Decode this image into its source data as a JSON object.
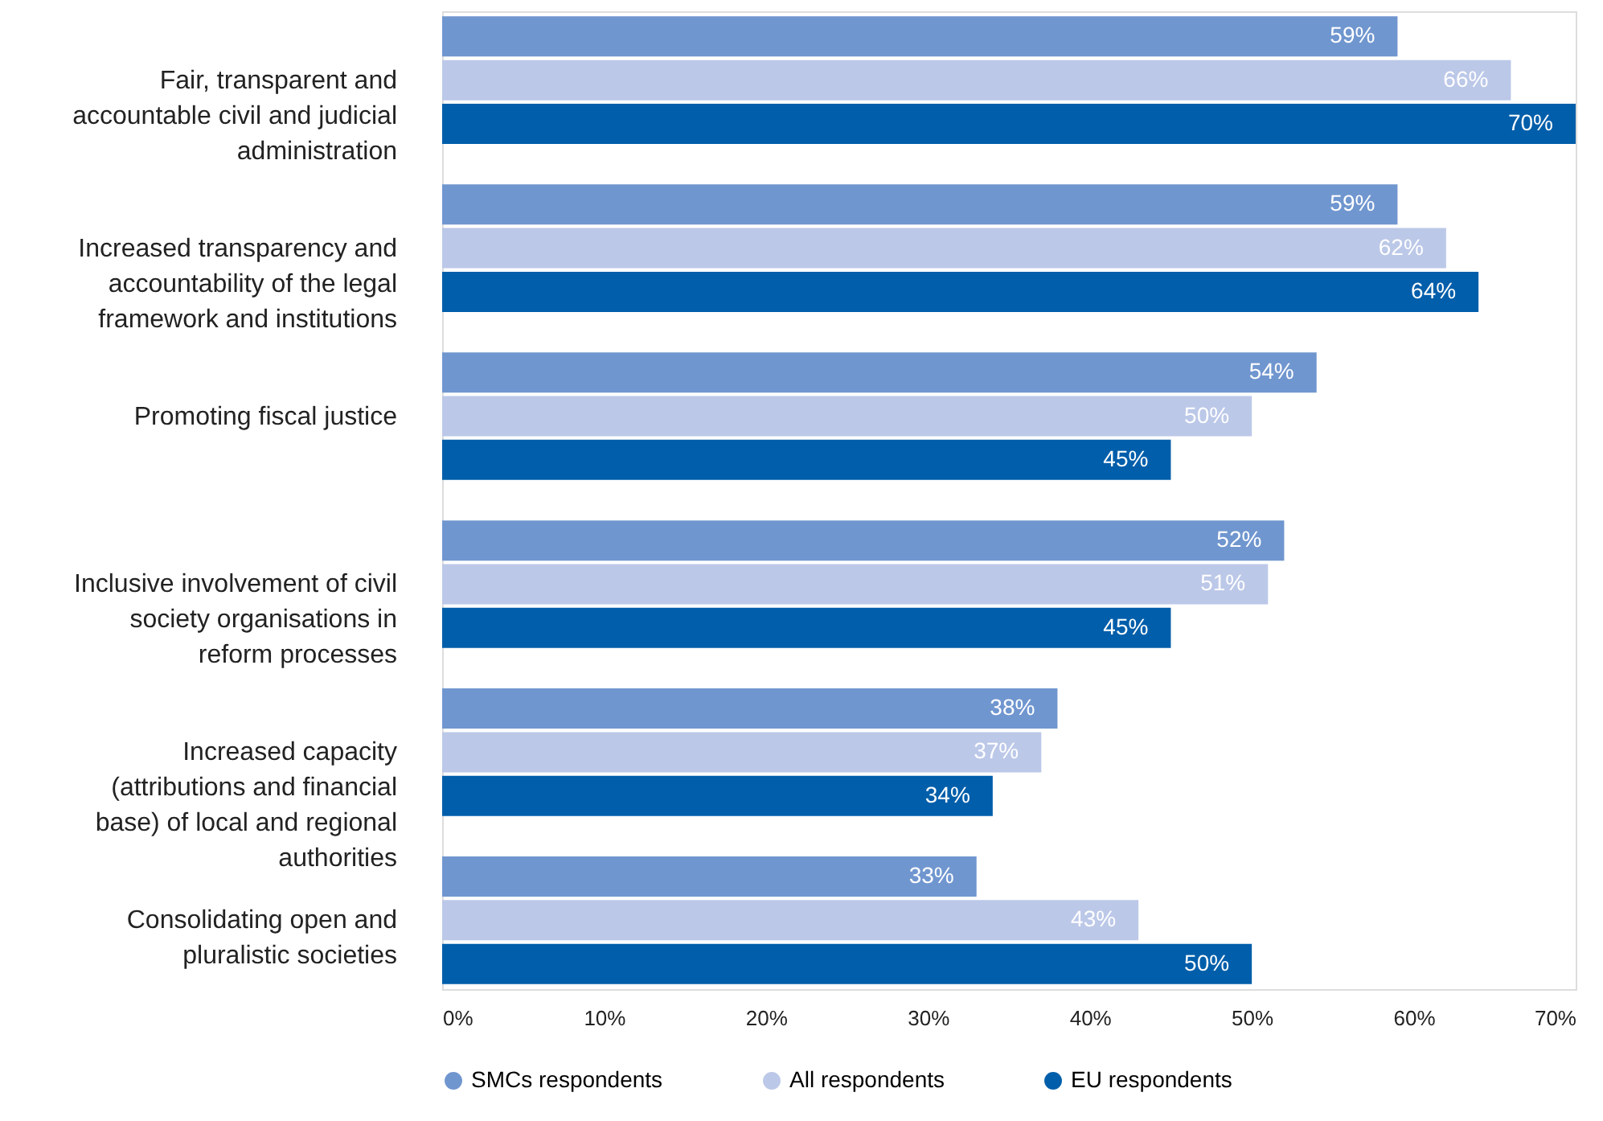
{
  "chart_data": {
    "type": "bar",
    "orientation": "horizontal",
    "categories": [
      "Fair, transparent and accountable civil and judicial administration",
      "Increased transparency and accountability of the legal framework and institutions",
      "Promoting fiscal justice",
      "Inclusive involvement of civil society organisations in reform processes",
      "Increased capacity (attributions and financial base) of local and regional authorities",
      "Consolidating open and pluralistic societies"
    ],
    "series": [
      {
        "name": "SMCs respondents",
        "color": "#7096cf",
        "values": [
          59,
          59,
          54,
          52,
          38,
          33
        ],
        "value_labels": [
          "59%",
          "59%",
          "54%",
          "52%",
          "38%",
          "33%"
        ]
      },
      {
        "name": "All respondents",
        "color": "#bcc8e8",
        "values": [
          66,
          62,
          50,
          51,
          37,
          43
        ],
        "value_labels": [
          "66%",
          "62%",
          "50%",
          "51%",
          "37%",
          "43%"
        ]
      },
      {
        "name": "EU respondents",
        "color": "#005eaa",
        "values": [
          70,
          64,
          45,
          45,
          34,
          50
        ],
        "value_labels": [
          "70%",
          "64%",
          "45%",
          "45%",
          "34%",
          "50%"
        ]
      }
    ],
    "xlim": [
      0,
      70
    ],
    "xticks": [
      {
        "value": 0,
        "label": "0%"
      },
      {
        "value": 10,
        "label": "10%"
      },
      {
        "value": 20,
        "label": "20%"
      },
      {
        "value": 30,
        "label": "30%"
      },
      {
        "value": 40,
        "label": "40%"
      },
      {
        "value": 50,
        "label": "50%"
      },
      {
        "value": 60,
        "label": "60%"
      },
      {
        "value": 70,
        "label": "70%"
      }
    ],
    "grid": false,
    "legend": "bottom",
    "marker": "circle"
  }
}
